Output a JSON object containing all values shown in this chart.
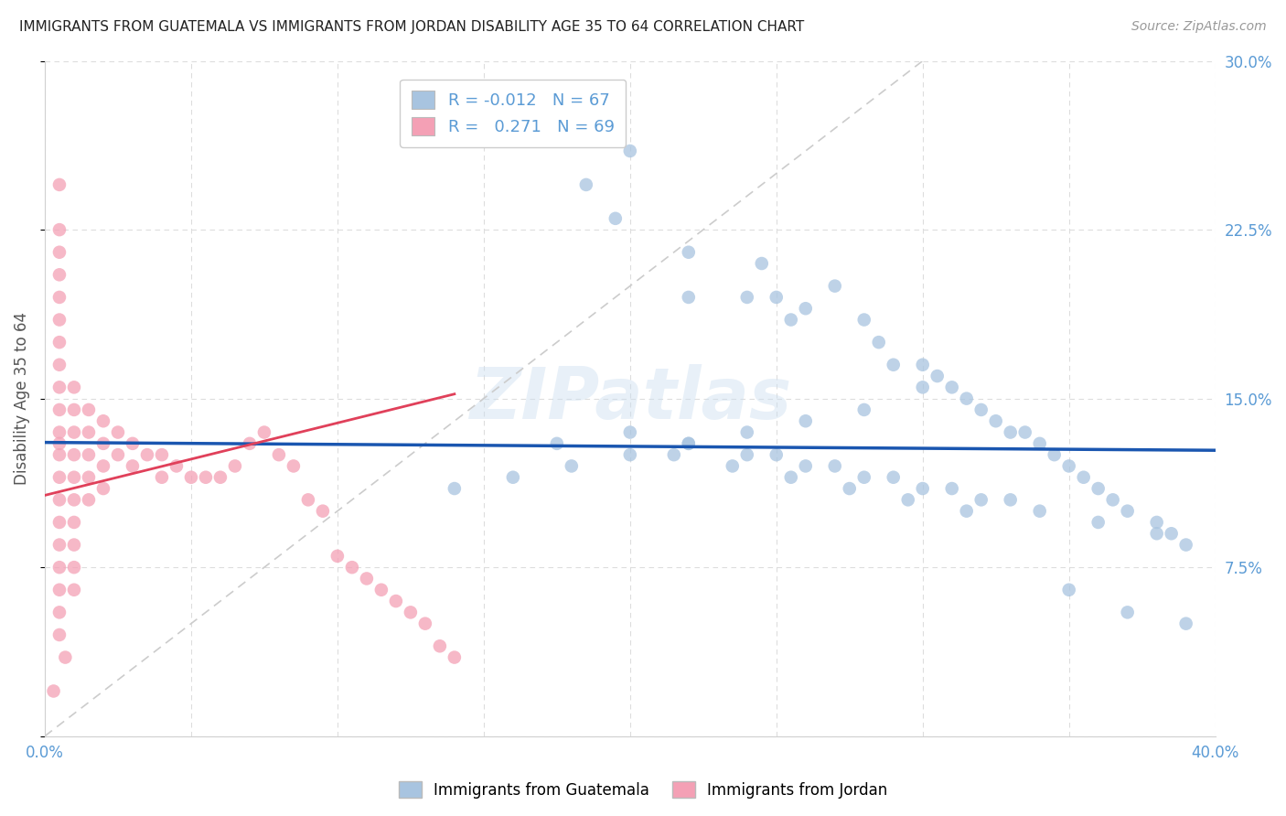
{
  "title": "IMMIGRANTS FROM GUATEMALA VS IMMIGRANTS FROM JORDAN DISABILITY AGE 35 TO 64 CORRELATION CHART",
  "source": "Source: ZipAtlas.com",
  "ylabel": "Disability Age 35 to 64",
  "xlim": [
    0.0,
    0.4
  ],
  "ylim": [
    0.0,
    0.3
  ],
  "xticks": [
    0.0,
    0.05,
    0.1,
    0.15,
    0.2,
    0.25,
    0.3,
    0.35,
    0.4
  ],
  "xticklabels": [
    "0.0%",
    "",
    "",
    "",
    "",
    "",
    "",
    "",
    "40.0%"
  ],
  "yticks": [
    0.0,
    0.075,
    0.15,
    0.225,
    0.3
  ],
  "yticklabels": [
    "",
    "7.5%",
    "15.0%",
    "22.5%",
    "30.0%"
  ],
  "legend_r_blue": "-0.012",
  "legend_n_blue": "67",
  "legend_r_pink": "0.271",
  "legend_n_pink": "69",
  "blue_color": "#a8c4e0",
  "pink_color": "#f4a0b5",
  "blue_line_color": "#1a56b0",
  "pink_line_color": "#e0405a",
  "axis_label_color": "#5b9bd5",
  "watermark": "ZIPatlas",
  "guatemala_x": [
    0.155,
    0.2,
    0.185,
    0.195,
    0.22,
    0.22,
    0.24,
    0.245,
    0.25,
    0.255,
    0.26,
    0.27,
    0.28,
    0.285,
    0.29,
    0.3,
    0.305,
    0.31,
    0.315,
    0.32,
    0.325,
    0.33,
    0.335,
    0.34,
    0.345,
    0.35,
    0.355,
    0.36,
    0.365,
    0.37,
    0.38,
    0.385,
    0.39,
    0.3,
    0.28,
    0.26,
    0.24,
    0.22,
    0.2,
    0.18,
    0.16,
    0.14,
    0.25,
    0.27,
    0.29,
    0.31,
    0.33,
    0.35,
    0.37,
    0.39,
    0.2,
    0.22,
    0.24,
    0.26,
    0.28,
    0.3,
    0.32,
    0.34,
    0.36,
    0.38,
    0.175,
    0.215,
    0.235,
    0.255,
    0.275,
    0.295,
    0.315
  ],
  "guatemala_y": [
    0.275,
    0.26,
    0.245,
    0.23,
    0.215,
    0.195,
    0.195,
    0.21,
    0.195,
    0.185,
    0.19,
    0.2,
    0.185,
    0.175,
    0.165,
    0.165,
    0.16,
    0.155,
    0.15,
    0.145,
    0.14,
    0.135,
    0.135,
    0.13,
    0.125,
    0.12,
    0.115,
    0.11,
    0.105,
    0.1,
    0.095,
    0.09,
    0.085,
    0.155,
    0.145,
    0.14,
    0.135,
    0.13,
    0.125,
    0.12,
    0.115,
    0.11,
    0.125,
    0.12,
    0.115,
    0.11,
    0.105,
    0.065,
    0.055,
    0.05,
    0.135,
    0.13,
    0.125,
    0.12,
    0.115,
    0.11,
    0.105,
    0.1,
    0.095,
    0.09,
    0.13,
    0.125,
    0.12,
    0.115,
    0.11,
    0.105,
    0.1
  ],
  "jordan_x": [
    0.005,
    0.005,
    0.005,
    0.005,
    0.005,
    0.005,
    0.005,
    0.005,
    0.005,
    0.005,
    0.005,
    0.005,
    0.005,
    0.005,
    0.005,
    0.005,
    0.005,
    0.005,
    0.005,
    0.005,
    0.01,
    0.01,
    0.01,
    0.01,
    0.01,
    0.01,
    0.01,
    0.01,
    0.01,
    0.01,
    0.015,
    0.015,
    0.015,
    0.015,
    0.015,
    0.02,
    0.02,
    0.02,
    0.02,
    0.025,
    0.025,
    0.03,
    0.03,
    0.035,
    0.04,
    0.04,
    0.045,
    0.05,
    0.055,
    0.06,
    0.065,
    0.07,
    0.075,
    0.08,
    0.085,
    0.09,
    0.095,
    0.1,
    0.105,
    0.11,
    0.115,
    0.12,
    0.125,
    0.13,
    0.135,
    0.14,
    0.005,
    0.007,
    0.003
  ],
  "jordan_y": [
    0.245,
    0.225,
    0.215,
    0.205,
    0.195,
    0.185,
    0.175,
    0.165,
    0.155,
    0.145,
    0.135,
    0.125,
    0.115,
    0.105,
    0.095,
    0.085,
    0.075,
    0.065,
    0.055,
    0.045,
    0.155,
    0.145,
    0.135,
    0.125,
    0.115,
    0.105,
    0.095,
    0.085,
    0.075,
    0.065,
    0.145,
    0.135,
    0.125,
    0.115,
    0.105,
    0.14,
    0.13,
    0.12,
    0.11,
    0.135,
    0.125,
    0.13,
    0.12,
    0.125,
    0.125,
    0.115,
    0.12,
    0.115,
    0.115,
    0.115,
    0.12,
    0.13,
    0.135,
    0.125,
    0.12,
    0.105,
    0.1,
    0.08,
    0.075,
    0.07,
    0.065,
    0.06,
    0.055,
    0.05,
    0.04,
    0.035,
    0.13,
    0.035,
    0.02
  ],
  "blue_trend_x": [
    0.0,
    0.4
  ],
  "blue_trend_y": [
    0.1305,
    0.127
  ],
  "pink_trend_x": [
    0.0,
    0.14
  ],
  "pink_trend_y": [
    0.107,
    0.152
  ]
}
